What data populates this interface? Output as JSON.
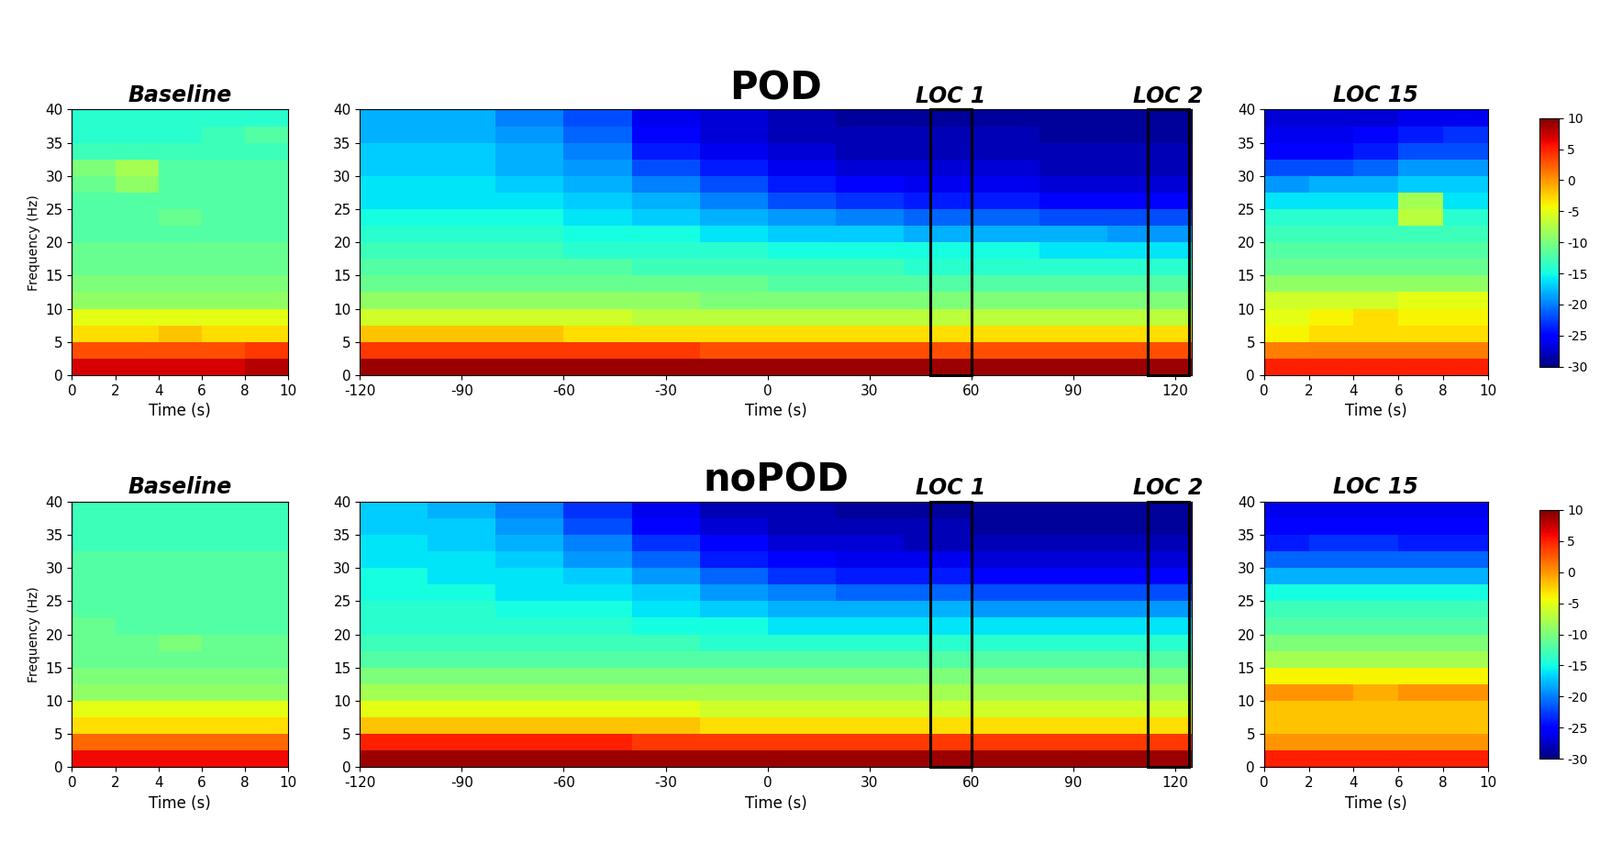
{
  "chart_data": [
    {
      "type": "heatmap",
      "title": "Baseline",
      "xlabel": "Time (s)",
      "ylabel": "Frequency (Hz)",
      "x_edges": [
        0,
        2,
        4,
        6,
        8,
        10
      ],
      "y_edges": [
        0,
        2.5,
        5,
        7.5,
        10,
        12.5,
        15,
        17.5,
        20,
        22.5,
        25,
        27.5,
        30,
        32.5,
        35,
        37.5,
        40
      ],
      "cells": [
        [
          7,
          7,
          7,
          7,
          8
        ],
        [
          3,
          3,
          3,
          3,
          4
        ],
        [
          -3,
          -3,
          -2,
          -3,
          -3
        ],
        [
          -5,
          -5,
          -5,
          -5,
          -5
        ],
        [
          -9,
          -9,
          -9,
          -9,
          -9
        ],
        [
          -10,
          -10,
          -10,
          -10,
          -10
        ],
        [
          -11,
          -11,
          -11,
          -11,
          -11
        ],
        [
          -11,
          -11,
          -11,
          -11,
          -11
        ],
        [
          -12,
          -12,
          -12,
          -12,
          -12
        ],
        [
          -12,
          -12,
          -11,
          -12,
          -12
        ],
        [
          -12,
          -12,
          -12,
          -12,
          -12
        ],
        [
          -11,
          -9,
          -12,
          -12,
          -12
        ],
        [
          -10,
          -8,
          -12,
          -12,
          -12
        ],
        [
          -13,
          -13,
          -13,
          -13,
          -13
        ],
        [
          -14,
          -14,
          -14,
          -13,
          -12
        ],
        [
          -14,
          -14,
          -14,
          -14,
          -14
        ]
      ],
      "xlim": [
        0,
        10
      ],
      "xticks": [
        0,
        2,
        4,
        6,
        8,
        10
      ],
      "ylim": [
        0,
        40
      ],
      "yticks": [
        0,
        5,
        10,
        15,
        20,
        25,
        30,
        35,
        40
      ]
    },
    {
      "type": "heatmap",
      "title": "POD",
      "xlabel": "Time (s)",
      "x_edges": [
        -120,
        -100,
        -80,
        -60,
        -40,
        -20,
        0,
        20,
        40,
        60,
        80,
        100,
        125
      ],
      "y_edges": [
        0,
        2.5,
        5,
        7.5,
        10,
        12.5,
        15,
        17.5,
        20,
        22.5,
        25,
        27.5,
        30,
        32.5,
        35,
        37.5,
        40
      ],
      "cells": [
        [
          9,
          9,
          9,
          9,
          9,
          9,
          9,
          9,
          9,
          9,
          9,
          9
        ],
        [
          4,
          4,
          4,
          4,
          4,
          3,
          3,
          3,
          3,
          3,
          3,
          3
        ],
        [
          -2,
          -2,
          -2,
          -3,
          -3,
          -3,
          -3,
          -3,
          -3,
          -3,
          -3,
          -3
        ],
        [
          -6,
          -6,
          -6,
          -6,
          -7,
          -7,
          -7,
          -7,
          -7,
          -7,
          -7,
          -7
        ],
        [
          -9,
          -9,
          -9,
          -9,
          -9,
          -10,
          -10,
          -10,
          -10,
          -10,
          -10,
          -10
        ],
        [
          -11,
          -11,
          -11,
          -11,
          -11,
          -11,
          -12,
          -12,
          -12,
          -12,
          -12,
          -12
        ],
        [
          -12,
          -12,
          -12,
          -12,
          -13,
          -13,
          -13,
          -13,
          -14,
          -14,
          -14,
          -14
        ],
        [
          -13,
          -13,
          -13,
          -14,
          -14,
          -14,
          -15,
          -15,
          -15,
          -15,
          -16,
          -16
        ],
        [
          -14,
          -14,
          -14,
          -15,
          -15,
          -16,
          -17,
          -17,
          -18,
          -18,
          -18,
          -19
        ],
        [
          -15,
          -15,
          -15,
          -16,
          -17,
          -18,
          -19,
          -20,
          -21,
          -21,
          -22,
          -22
        ],
        [
          -16,
          -16,
          -16,
          -17,
          -18,
          -20,
          -22,
          -23,
          -24,
          -24,
          -25,
          -25
        ],
        [
          -16,
          -16,
          -17,
          -18,
          -20,
          -22,
          -24,
          -25,
          -26,
          -26,
          -27,
          -27
        ],
        [
          -17,
          -17,
          -18,
          -19,
          -22,
          -24,
          -26,
          -27,
          -27,
          -27,
          -28,
          -28
        ],
        [
          -17,
          -17,
          -18,
          -20,
          -24,
          -26,
          -27,
          -28,
          -28,
          -28,
          -28,
          -28
        ],
        [
          -18,
          -18,
          -19,
          -21,
          -25,
          -27,
          -28,
          -28,
          -28,
          -28,
          -29,
          -29
        ],
        [
          -18,
          -18,
          -20,
          -22,
          -26,
          -27,
          -28,
          -29,
          -29,
          -29,
          -29,
          -29
        ]
      ],
      "xlim": [
        -120,
        125
      ],
      "xticks": [
        -120,
        -90,
        -60,
        -30,
        0,
        30,
        60,
        90,
        120
      ],
      "ylim": [
        0,
        40
      ],
      "yticks": [
        0,
        5,
        10,
        15,
        20,
        25,
        30,
        35,
        40
      ],
      "annotations": [
        {
          "text": "LOC 1",
          "x": [
            48,
            60
          ]
        },
        {
          "text": "LOC 2",
          "x": [
            112,
            124
          ]
        }
      ]
    },
    {
      "type": "heatmap",
      "title": "LOC 15",
      "xlabel": "Time (s)",
      "x_edges": [
        0,
        2,
        4,
        6,
        8,
        10
      ],
      "y_edges": [
        0,
        2.5,
        5,
        7.5,
        10,
        12.5,
        15,
        17.5,
        20,
        22.5,
        25,
        27.5,
        30,
        32.5,
        35,
        37.5,
        40
      ],
      "cells": [
        [
          5,
          5,
          5,
          5,
          5
        ],
        [
          1,
          1,
          1,
          1,
          1
        ],
        [
          -4,
          -3,
          -3,
          -3,
          -3
        ],
        [
          -5,
          -4,
          -3,
          -4,
          -4
        ],
        [
          -6,
          -6,
          -6,
          -5,
          -5
        ],
        [
          -9,
          -9,
          -9,
          -9,
          -9
        ],
        [
          -11,
          -11,
          -11,
          -11,
          -11
        ],
        [
          -12,
          -12,
          -12,
          -12,
          -12
        ],
        [
          -13,
          -13,
          -13,
          -13,
          -13
        ],
        [
          -14,
          -14,
          -14,
          -7,
          -14
        ],
        [
          -16,
          -16,
          -16,
          -8,
          -16
        ],
        [
          -19,
          -18,
          -18,
          -17,
          -17
        ],
        [
          -22,
          -22,
          -21,
          -19,
          -19
        ],
        [
          -25,
          -25,
          -24,
          -22,
          -22
        ],
        [
          -26,
          -26,
          -25,
          -24,
          -23
        ],
        [
          -27,
          -27,
          -27,
          -26,
          -26
        ]
      ],
      "xlim": [
        0,
        10
      ],
      "xticks": [
        0,
        2,
        4,
        6,
        8,
        10
      ],
      "ylim": [
        0,
        40
      ],
      "yticks": [
        0,
        5,
        10,
        15,
        20,
        25,
        30,
        35,
        40
      ],
      "colorbar": {
        "range": [
          -30,
          10
        ],
        "ticks": [
          10,
          5,
          0,
          -5,
          -10,
          -15,
          -20,
          -25,
          -30
        ]
      }
    },
    {
      "type": "heatmap",
      "title": "Baseline",
      "xlabel": "Time (s)",
      "ylabel": "Frequency (Hz)",
      "x_edges": [
        0,
        2,
        4,
        6,
        8,
        10
      ],
      "y_edges": [
        0,
        2.5,
        5,
        7.5,
        10,
        12.5,
        15,
        17.5,
        20,
        22.5,
        25,
        27.5,
        30,
        32.5,
        35,
        37.5,
        40
      ],
      "cells": [
        [
          6,
          6,
          6,
          6,
          6
        ],
        [
          2,
          2,
          2,
          2,
          2
        ],
        [
          -3,
          -3,
          -3,
          -3,
          -3
        ],
        [
          -5,
          -5,
          -5,
          -5,
          -5
        ],
        [
          -9,
          -9,
          -9,
          -9,
          -9
        ],
        [
          -10,
          -10,
          -10,
          -10,
          -10
        ],
        [
          -11,
          -11,
          -11,
          -11,
          -11
        ],
        [
          -11,
          -11,
          -10,
          -11,
          -11
        ],
        [
          -11,
          -12,
          -12,
          -12,
          -12
        ],
        [
          -12,
          -12,
          -12,
          -12,
          -12
        ],
        [
          -12,
          -12,
          -12,
          -12,
          -12
        ],
        [
          -12,
          -12,
          -12,
          -12,
          -12
        ],
        [
          -12,
          -12,
          -12,
          -12,
          -12
        ],
        [
          -13,
          -13,
          -13,
          -13,
          -13
        ],
        [
          -13,
          -13,
          -13,
          -13,
          -13
        ],
        [
          -13,
          -13,
          -13,
          -13,
          -13
        ]
      ],
      "xlim": [
        0,
        10
      ],
      "xticks": [
        0,
        2,
        4,
        6,
        8,
        10
      ],
      "ylim": [
        0,
        40
      ],
      "yticks": [
        0,
        5,
        10,
        15,
        20,
        25,
        30,
        35,
        40
      ]
    },
    {
      "type": "heatmap",
      "title": "noPOD",
      "xlabel": "Time (s)",
      "x_edges": [
        -120,
        -100,
        -80,
        -60,
        -40,
        -20,
        0,
        20,
        40,
        60,
        80,
        100,
        125
      ],
      "y_edges": [
        0,
        2.5,
        5,
        7.5,
        10,
        12.5,
        15,
        17.5,
        20,
        22.5,
        25,
        27.5,
        30,
        32.5,
        35,
        37.5,
        40
      ],
      "cells": [
        [
          9,
          9,
          9,
          9,
          9,
          9,
          9,
          9,
          9,
          9,
          9,
          9
        ],
        [
          5,
          5,
          5,
          5,
          4,
          4,
          4,
          4,
          4,
          4,
          4,
          4
        ],
        [
          -2,
          -2,
          -2,
          -2,
          -2,
          -3,
          -3,
          -3,
          -3,
          -3,
          -3,
          -3
        ],
        [
          -5,
          -5,
          -5,
          -5,
          -5,
          -6,
          -6,
          -6,
          -6,
          -6,
          -6,
          -6
        ],
        [
          -8,
          -8,
          -8,
          -8,
          -8,
          -8,
          -8,
          -8,
          -8,
          -8,
          -8,
          -8
        ],
        [
          -10,
          -10,
          -10,
          -10,
          -10,
          -10,
          -10,
          -10,
          -10,
          -10,
          -10,
          -10
        ],
        [
          -12,
          -12,
          -12,
          -12,
          -12,
          -12,
          -12,
          -12,
          -12,
          -12,
          -12,
          -12
        ],
        [
          -13,
          -13,
          -13,
          -13,
          -13,
          -14,
          -14,
          -14,
          -14,
          -14,
          -14,
          -14
        ],
        [
          -14,
          -14,
          -14,
          -14,
          -15,
          -15,
          -16,
          -16,
          -16,
          -16,
          -16,
          -16
        ],
        [
          -14,
          -14,
          -15,
          -15,
          -16,
          -17,
          -18,
          -18,
          -18,
          -19,
          -19,
          -19
        ],
        [
          -15,
          -15,
          -16,
          -16,
          -17,
          -19,
          -20,
          -21,
          -21,
          -22,
          -22,
          -22
        ],
        [
          -15,
          -16,
          -16,
          -17,
          -19,
          -21,
          -23,
          -24,
          -24,
          -25,
          -25,
          -25
        ],
        [
          -16,
          -16,
          -17,
          -19,
          -21,
          -24,
          -25,
          -26,
          -26,
          -27,
          -27,
          -27
        ],
        [
          -16,
          -17,
          -18,
          -20,
          -23,
          -25,
          -27,
          -27,
          -28,
          -28,
          -28,
          -28
        ],
        [
          -17,
          -17,
          -19,
          -22,
          -25,
          -27,
          -28,
          -28,
          -28,
          -29,
          -29,
          -29
        ],
        [
          -17,
          -18,
          -20,
          -23,
          -26,
          -28,
          -28,
          -29,
          -29,
          -29,
          -29,
          -29
        ]
      ],
      "xlim": [
        -120,
        125
      ],
      "xticks": [
        -120,
        -90,
        -60,
        -30,
        0,
        30,
        60,
        90,
        120
      ],
      "ylim": [
        0,
        40
      ],
      "yticks": [
        0,
        5,
        10,
        15,
        20,
        25,
        30,
        35,
        40
      ],
      "annotations": [
        {
          "text": "LOC 1",
          "x": [
            48,
            60
          ]
        },
        {
          "text": "LOC 2",
          "x": [
            112,
            124
          ]
        }
      ]
    },
    {
      "type": "heatmap",
      "title": "LOC 15",
      "xlabel": "Time (s)",
      "x_edges": [
        0,
        2,
        4,
        6,
        8,
        10
      ],
      "y_edges": [
        0,
        2.5,
        5,
        7.5,
        10,
        12.5,
        15,
        17.5,
        20,
        22.5,
        25,
        27.5,
        30,
        32.5,
        35,
        37.5,
        40
      ],
      "cells": [
        [
          5,
          5,
          5,
          5,
          5
        ],
        [
          0,
          0,
          0,
          0,
          0
        ],
        [
          -2,
          -2,
          -2,
          -2,
          -2
        ],
        [
          -2,
          -2,
          -2,
          -2,
          -2
        ],
        [
          0,
          0,
          -1,
          0,
          0
        ],
        [
          -4,
          -4,
          -4,
          -4,
          -4
        ],
        [
          -8,
          -8,
          -8,
          -8,
          -8
        ],
        [
          -10,
          -10,
          -10,
          -10,
          -10
        ],
        [
          -12,
          -12,
          -12,
          -12,
          -12
        ],
        [
          -13,
          -13,
          -13,
          -13,
          -13
        ],
        [
          -15,
          -15,
          -15,
          -15,
          -15
        ],
        [
          -18,
          -18,
          -18,
          -18,
          -18
        ],
        [
          -21,
          -21,
          -21,
          -21,
          -21
        ],
        [
          -24,
          -23,
          -23,
          -24,
          -24
        ],
        [
          -25,
          -25,
          -25,
          -25,
          -25
        ],
        [
          -26,
          -26,
          -26,
          -26,
          -26
        ]
      ],
      "xlim": [
        0,
        10
      ],
      "xticks": [
        0,
        2,
        4,
        6,
        8,
        10
      ],
      "ylim": [
        0,
        40
      ],
      "yticks": [
        0,
        5,
        10,
        15,
        20,
        25,
        30,
        35,
        40
      ],
      "colorbar": {
        "range": [
          -30,
          10
        ],
        "ticks": [
          10,
          5,
          0,
          -5,
          -10,
          -15,
          -20,
          -25,
          -30
        ]
      }
    }
  ]
}
